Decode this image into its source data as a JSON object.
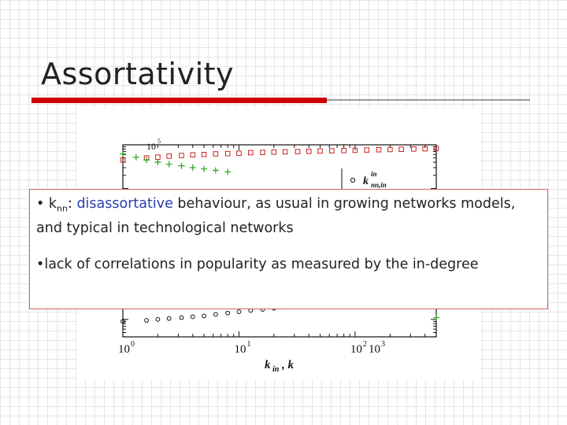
{
  "slide": {
    "title": "Assortativity"
  },
  "overlay": {
    "bullet1_k": "k",
    "bullet1_sub": "nn",
    "bullet1_colon": ": ",
    "bullet1_highlight": "disassortative",
    "bullet1_rest": " behaviour, as usual in growing networks models, and typical in technological networks",
    "bullet2": "lack of correlations in popularity as measured by the in-degree"
  },
  "chart_data": {
    "type": "scatter",
    "xscale": "log",
    "yscale": "log",
    "xlim": [
      1,
      500
    ],
    "ylim_top": 100000,
    "x_ticks": [
      "10",
      "10",
      "10",
      "10"
    ],
    "x_tick_exps": [
      "0",
      "1",
      "2",
      "3"
    ],
    "y_ticks": [
      "10"
    ],
    "y_tick_exps": [
      "5"
    ],
    "xlabel_main": "k",
    "xlabel_sub1": "in",
    "xlabel_sep": ", k",
    "legend": {
      "entry_main": "k",
      "entry_sub": "nn,in",
      "entry_sup": "in"
    },
    "colors": {
      "squares": "#cc2222",
      "plus": "#33aa22",
      "circles": "#111111"
    },
    "series": [
      {
        "marker": "square",
        "x": [
          1,
          1.6,
          2,
          2.5,
          3.2,
          4,
          5,
          6.3,
          8,
          10,
          12.6,
          16,
          20,
          25,
          32,
          40,
          50,
          63,
          80,
          100,
          126,
          160,
          200,
          250,
          320,
          400,
          500
        ],
        "y": [
          45000,
          50000,
          52000,
          55000,
          57000,
          59000,
          60000,
          62000,
          63000,
          64000,
          66000,
          67000,
          68000,
          69000,
          70000,
          71000,
          72000,
          73000,
          74000,
          75000,
          76000,
          77000,
          78000,
          79000,
          80000,
          81000,
          82000
        ]
      },
      {
        "marker": "plus",
        "x": [
          1,
          1.3,
          1.6,
          2,
          2.5,
          3.2,
          4,
          5,
          6.3,
          8
        ],
        "y": [
          62000,
          52000,
          45000,
          40000,
          36000,
          33000,
          30000,
          28000,
          26000,
          24000
        ]
      },
      {
        "marker": "circle",
        "x": [
          1,
          1.6,
          2,
          2.5,
          3.2,
          4,
          5,
          6.3,
          8,
          10,
          12.6,
          16,
          20,
          25,
          32,
          40,
          50
        ],
        "y": [
          9,
          9.5,
          10,
          10.5,
          11,
          11.5,
          12,
          13,
          14,
          15,
          16,
          17,
          18,
          19,
          20,
          21,
          22
        ]
      },
      {
        "marker": "plus",
        "x": [
          500
        ],
        "y": [
          11
        ]
      }
    ]
  }
}
